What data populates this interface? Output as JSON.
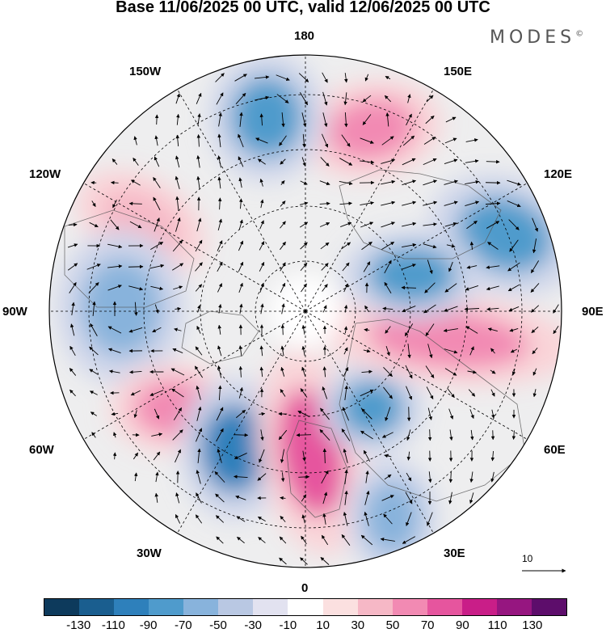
{
  "title": "Base 11/06/2025 00 UTC, valid 12/06/2025 00 UTC",
  "brand": "MODES",
  "brand_mark": "©",
  "labels": {
    "n180": "180",
    "w150": "150W",
    "e150": "150E",
    "w120": "120W",
    "e120": "120E",
    "w90": "90W",
    "e90": "90E",
    "w60": "60W",
    "e60": "60E",
    "w30": "30W",
    "e30": "30E",
    "s0": "0"
  },
  "reference_vector": "10",
  "colorbar": {
    "colors": [
      "#0d3a5c",
      "#1a5e8f",
      "#2e80bb",
      "#4f9bcc",
      "#88b3dc",
      "#b9c8e3",
      "#e2e2f0",
      "#ffffff",
      "#fbe0e0",
      "#f6b8c6",
      "#f28ab3",
      "#e6559e",
      "#c91e88",
      "#961680",
      "#5d0d6b"
    ],
    "ticks": [
      "-130",
      "-110",
      "-90",
      "-70",
      "-50",
      "-30",
      "-10",
      "10",
      "30",
      "50",
      "70",
      "90",
      "110",
      "130"
    ]
  },
  "anomalies": [
    {
      "name": "high-nw-pacific",
      "value": 70,
      "color": "#f28ab3"
    },
    {
      "name": "low-n-pacific",
      "value": -70,
      "color": "#4f9bcc"
    },
    {
      "name": "high-w-canada",
      "value": 50,
      "color": "#f6b8c6"
    },
    {
      "name": "low-canada",
      "value": -50,
      "color": "#88b3dc"
    },
    {
      "name": "high-labrador",
      "value": 70,
      "color": "#f28ab3"
    },
    {
      "name": "low-n-atlantic",
      "value": -90,
      "color": "#2e80bb"
    },
    {
      "name": "high-europe",
      "value": 90,
      "color": "#e6559e"
    },
    {
      "name": "low-scandinavia",
      "value": -70,
      "color": "#4f9bcc"
    },
    {
      "name": "high-siberia",
      "value": 70,
      "color": "#f28ab3"
    },
    {
      "name": "low-e-siberia",
      "value": -70,
      "color": "#4f9bcc"
    },
    {
      "name": "low-mongolia",
      "value": -70,
      "color": "#4f9bcc"
    },
    {
      "name": "low-mediterranean",
      "value": -50,
      "color": "#88b3dc"
    }
  ]
}
